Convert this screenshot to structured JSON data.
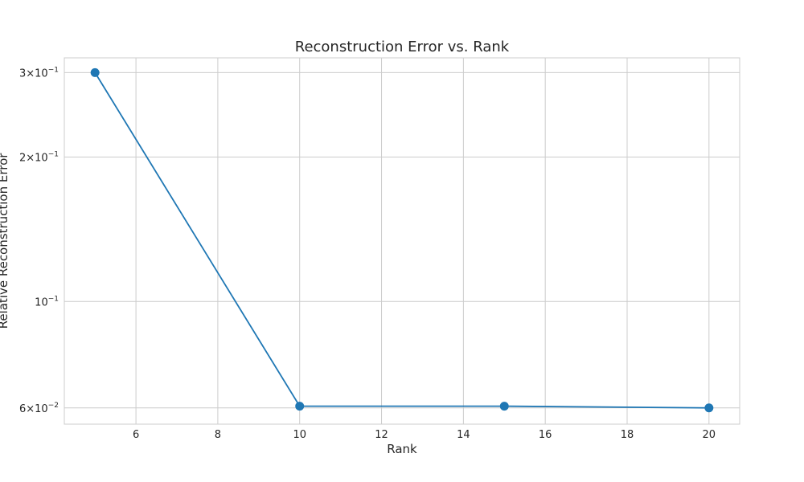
{
  "chart_data": {
    "type": "line",
    "title": "Reconstruction Error vs. Rank",
    "xlabel": "Rank",
    "ylabel": "Relative Reconstruction Error",
    "yscale": "log",
    "grid": true,
    "x": [
      5,
      10,
      15,
      20
    ],
    "series": [
      {
        "values": [
          0.3,
          0.0605,
          0.0605,
          0.06
        ],
        "color": "#1f77b4",
        "marker": "circle"
      }
    ],
    "xlim": [
      4.25,
      20.75
    ],
    "ylim": [
      0.0555,
      0.322
    ],
    "x_ticks": [
      {
        "value": 6,
        "label": "6"
      },
      {
        "value": 8,
        "label": "8"
      },
      {
        "value": 10,
        "label": "10"
      },
      {
        "value": 12,
        "label": "12"
      },
      {
        "value": 14,
        "label": "14"
      },
      {
        "value": 16,
        "label": "16"
      },
      {
        "value": 18,
        "label": "18"
      },
      {
        "value": 20,
        "label": "20"
      }
    ],
    "y_ticks": [
      {
        "value": 0.3,
        "mantissa": "3",
        "exponent": "−1"
      },
      {
        "value": 0.2,
        "mantissa": "2",
        "exponent": "−1"
      },
      {
        "value": 0.1,
        "mantissa": "",
        "exponent": "−1"
      },
      {
        "value": 0.06,
        "mantissa": "6",
        "exponent": "−2"
      }
    ]
  }
}
